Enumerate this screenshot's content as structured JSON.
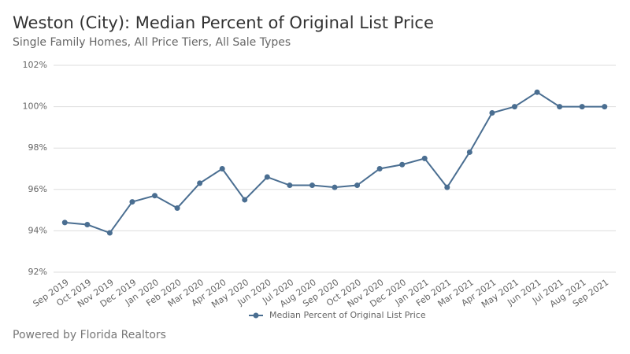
{
  "chart_data": {
    "type": "line",
    "title": "Weston (City): Median Percent of Original List Price",
    "subtitle": "Single Family Homes, All Price Tiers, All Sale Types",
    "categories": [
      "Sep 2019",
      "Oct 2019",
      "Nov 2019",
      "Dec 2019",
      "Jan 2020",
      "Feb 2020",
      "Mar 2020",
      "Apr 2020",
      "May 2020",
      "Jun 2020",
      "Jul 2020",
      "Aug 2020",
      "Sep 2020",
      "Oct 2020",
      "Nov 2020",
      "Dec 2020",
      "Jan 2021",
      "Feb 2021",
      "Mar 2021",
      "Apr 2021",
      "May 2021",
      "Jun 2021",
      "Jul 2021",
      "Aug 2021",
      "Sep 2021"
    ],
    "series": [
      {
        "name": "Median Percent of Original List Price",
        "color": "#4a6e91",
        "values": [
          94.4,
          94.3,
          93.9,
          95.4,
          95.7,
          95.1,
          96.3,
          97.0,
          95.5,
          96.6,
          96.2,
          96.2,
          96.1,
          96.2,
          97.0,
          97.2,
          97.5,
          96.1,
          97.8,
          99.7,
          100.0,
          100.7,
          100.0,
          100.0,
          100.0
        ]
      }
    ],
    "ylim": [
      92,
      102
    ],
    "yticks": [
      {
        "value": 92,
        "label": "92%"
      },
      {
        "value": 94,
        "label": "94%"
      },
      {
        "value": 96,
        "label": "96%"
      },
      {
        "value": 98,
        "label": "98%"
      },
      {
        "value": 100,
        "label": "100%"
      },
      {
        "value": 102,
        "label": "102%"
      }
    ],
    "grid": true,
    "legend": "bottom"
  },
  "footer": "Powered by Florida Realtors"
}
